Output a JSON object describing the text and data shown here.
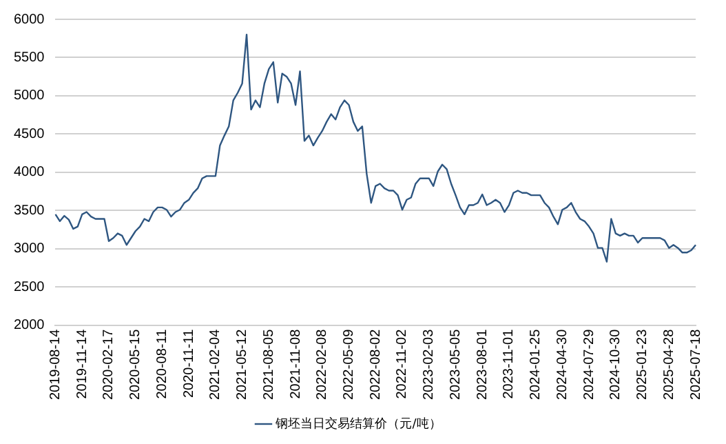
{
  "chart_data": {
    "type": "line",
    "categories": [
      "2019-08-14",
      null,
      null,
      null,
      null,
      null,
      "2019-11-14",
      null,
      null,
      null,
      null,
      null,
      "2020-02-17",
      null,
      null,
      null,
      null,
      null,
      "2020-05-15",
      null,
      null,
      null,
      null,
      null,
      "2020-08-11",
      null,
      null,
      null,
      null,
      null,
      "2020-11-11",
      null,
      null,
      null,
      null,
      null,
      "2021-02-04",
      null,
      null,
      null,
      null,
      null,
      "2021-05-12",
      null,
      null,
      null,
      null,
      null,
      "2021-08-05",
      null,
      null,
      null,
      null,
      null,
      "2021-11-08",
      null,
      null,
      null,
      null,
      null,
      "2022-02-08",
      null,
      null,
      null,
      null,
      null,
      "2022-05-09",
      null,
      null,
      null,
      null,
      null,
      "2022-08-02",
      null,
      null,
      null,
      null,
      null,
      "2022-11-02",
      null,
      null,
      null,
      null,
      null,
      "2023-02-03",
      null,
      null,
      null,
      null,
      null,
      "2023-05-05",
      null,
      null,
      null,
      null,
      null,
      "2023-08-01",
      null,
      null,
      null,
      null,
      null,
      "2023-11-01",
      null,
      null,
      null,
      null,
      null,
      "2024-01-25",
      null,
      null,
      null,
      null,
      null,
      "2024-04-30",
      null,
      null,
      null,
      null,
      null,
      "2024-07-29",
      null,
      null,
      null,
      null,
      null,
      "2024-10-30",
      null,
      null,
      null,
      null,
      null,
      "2025-01-23",
      null,
      null,
      null,
      null,
      null,
      "2025-04-28",
      null,
      null,
      null,
      null,
      null,
      "2025-07-18"
    ],
    "series": [
      {
        "name": "钢坯当日交易结算价（元/吨）",
        "color": "#2e5681",
        "values": [
          3450,
          3360,
          3430,
          3380,
          3260,
          3290,
          3450,
          3480,
          3420,
          3390,
          3390,
          3390,
          3100,
          3140,
          3200,
          3170,
          3050,
          3140,
          3230,
          3290,
          3390,
          3360,
          3480,
          3540,
          3540,
          3510,
          3420,
          3480,
          3510,
          3600,
          3640,
          3730,
          3790,
          3920,
          3950,
          3950,
          3950,
          4350,
          4480,
          4600,
          4940,
          5040,
          5160,
          5800,
          4820,
          4940,
          4850,
          5160,
          5350,
          5440,
          4910,
          5290,
          5250,
          5160,
          4880,
          5320,
          4410,
          4480,
          4350,
          4450,
          4540,
          4660,
          4760,
          4690,
          4850,
          4940,
          4880,
          4660,
          4540,
          4600,
          3980,
          3600,
          3820,
          3850,
          3790,
          3760,
          3760,
          3700,
          3510,
          3640,
          3670,
          3850,
          3920,
          3920,
          3920,
          3820,
          4010,
          4100,
          4040,
          3850,
          3700,
          3540,
          3450,
          3570,
          3570,
          3600,
          3710,
          3570,
          3600,
          3640,
          3600,
          3480,
          3570,
          3730,
          3760,
          3730,
          3730,
          3700,
          3700,
          3700,
          3600,
          3540,
          3420,
          3320,
          3510,
          3540,
          3600,
          3480,
          3390,
          3360,
          3290,
          3200,
          3010,
          3010,
          2830,
          3390,
          3200,
          3170,
          3200,
          3170,
          3170,
          3080,
          3140,
          3140,
          3140,
          3140,
          3140,
          3110,
          3010,
          3050,
          3010,
          2950,
          2950,
          2980,
          3050
        ]
      }
    ],
    "ylim": [
      2000,
      6000
    ],
    "yticks": [
      2000,
      2500,
      3000,
      3500,
      4000,
      4500,
      5000,
      5500,
      6000
    ],
    "grid": "y",
    "legend": "bottom",
    "marker": "none",
    "line_style": "solid"
  }
}
